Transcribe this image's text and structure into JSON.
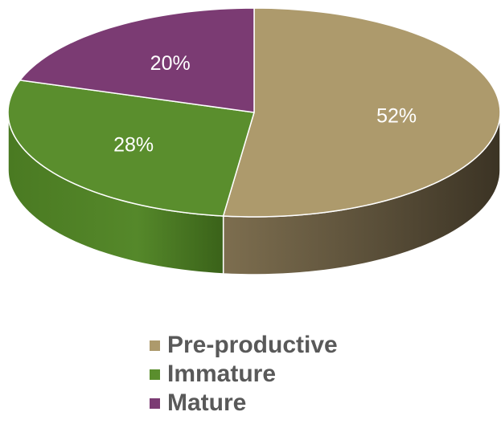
{
  "chart_data": {
    "type": "pie",
    "title": "",
    "style": "3d",
    "legend_position": "bottom",
    "categories": [
      "Pre-productive",
      "Immature",
      "Mature"
    ],
    "values": [
      52,
      28,
      20
    ],
    "data_labels": [
      "52%",
      "28%",
      "20%"
    ],
    "colors": [
      "#ad9a6c",
      "#5a8e2d",
      "#7b3b73"
    ],
    "side_colors": [
      "#4a4030",
      "#3f6a1d",
      "#4e2449"
    ]
  },
  "legend": {
    "items": [
      {
        "label": "Pre-productive",
        "color": "#ad9a6c"
      },
      {
        "label": "Immature",
        "color": "#5a8e2d"
      },
      {
        "label": "Mature",
        "color": "#7b3b73"
      }
    ]
  }
}
